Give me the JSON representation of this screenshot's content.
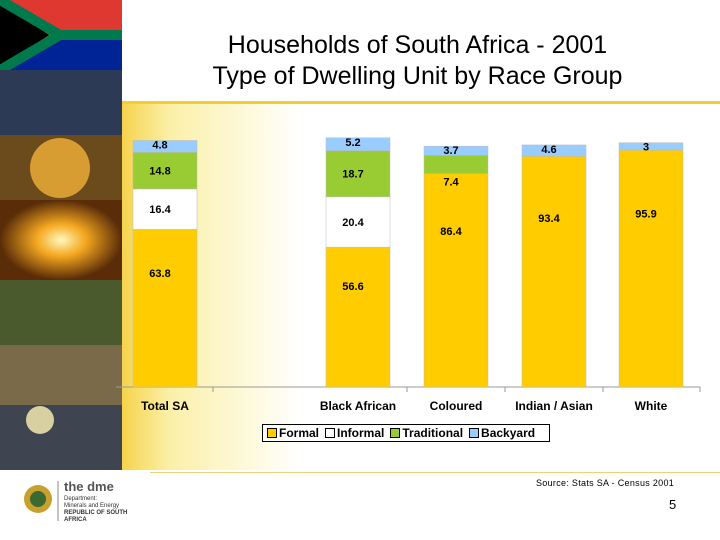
{
  "slide": {
    "title_line1": "Households of South Africa - 2001",
    "title_line2": "Type of Dwelling Unit by Race Group",
    "source": "Source: Stats SA - Census 2001",
    "page_number": "5",
    "logo_text": "the dme",
    "logo_sub1": "Department:",
    "logo_sub2": "Minerals and Energy",
    "logo_sub3": "REPUBLIC OF SOUTH AFRICA"
  },
  "chart_data": {
    "type": "bar",
    "stacked": true,
    "categories": [
      "Total SA",
      "Black African",
      "Coloured",
      "Indian / Asian",
      "White"
    ],
    "series": [
      {
        "name": "Formal",
        "color": "#ffcc00",
        "values": [
          63.8,
          56.6,
          86.4,
          93.4,
          95.9
        ]
      },
      {
        "name": "Informal",
        "color": "#ffffff",
        "values": [
          16.4,
          20.4,
          null,
          null,
          null
        ]
      },
      {
        "name": "Traditional",
        "color": "#99cc33",
        "values": [
          14.8,
          18.7,
          7.4,
          null,
          null
        ]
      },
      {
        "name": "Backyard",
        "color": "#99ccff",
        "values": [
          4.8,
          5.2,
          3.7,
          4.6,
          3
        ]
      }
    ],
    "ylim": [
      0,
      100
    ],
    "legend_position": "bottom"
  },
  "legend": {
    "formal": "Formal",
    "informal": "Informal",
    "traditional": "Traditional",
    "backyard": "Backyard"
  }
}
